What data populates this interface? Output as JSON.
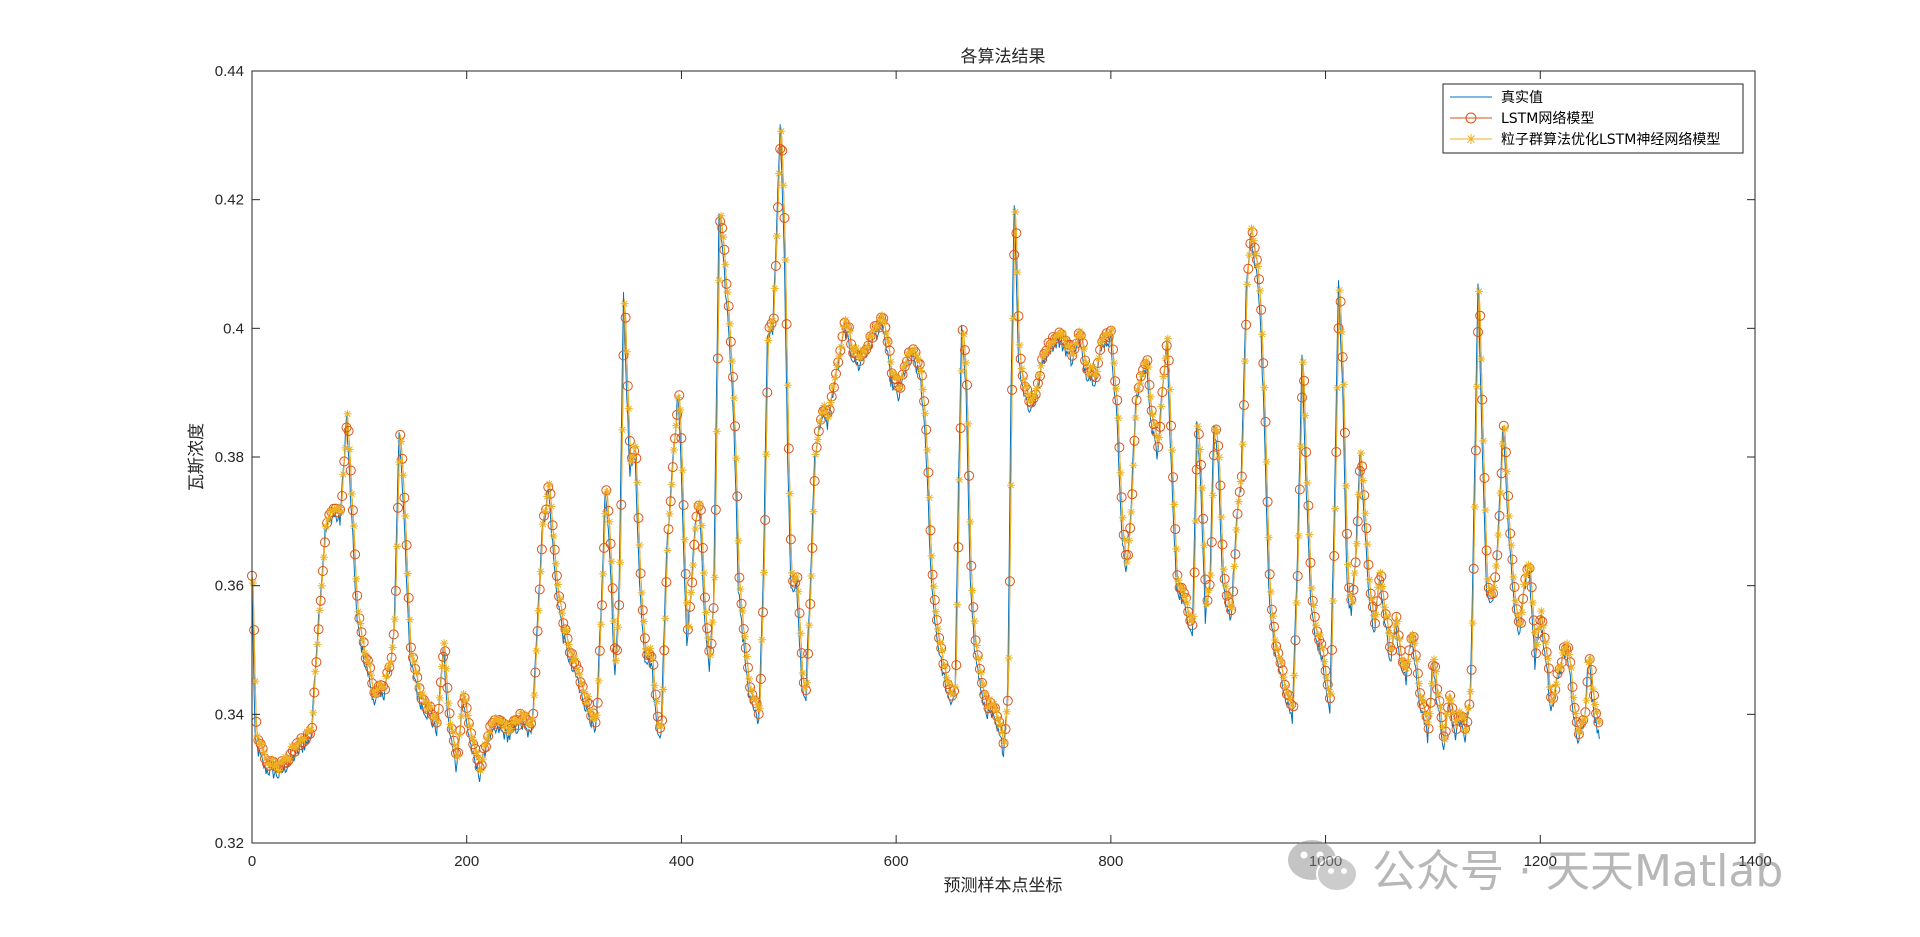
{
  "chart_data": {
    "type": "line",
    "title": "各算法结果",
    "xlabel": "预测样本点坐标",
    "ylabel": "瓦斯浓度",
    "xlim": [
      0,
      1400
    ],
    "ylim": [
      0.32,
      0.44
    ],
    "xticks": [
      0,
      200,
      400,
      600,
      800,
      1000,
      1200,
      1400
    ],
    "yticks": [
      0.32,
      0.34,
      0.36,
      0.38,
      0.4,
      0.42,
      0.44
    ],
    "xtick_labels": [
      "0",
      "200",
      "400",
      "600",
      "800",
      "1000",
      "1200",
      "1400"
    ],
    "ytick_labels": [
      "0.32",
      "0.34",
      "0.36",
      "0.38",
      "0.4",
      "0.42",
      "0.44"
    ],
    "grid": false,
    "legend_position": "top-right",
    "series": [
      {
        "name": "真实值",
        "color": "#0072BD",
        "marker": "none"
      },
      {
        "name": "LSTM网络模型",
        "color": "#D95319",
        "marker": "circle"
      },
      {
        "name": "粒子群算法优化LSTM神经网络模型",
        "color": "#EDB120",
        "marker": "asterisk"
      }
    ],
    "keypoints": [
      [
        0,
        0.36
      ],
      [
        3,
        0.337
      ],
      [
        12,
        0.333
      ],
      [
        25,
        0.332
      ],
      [
        40,
        0.335
      ],
      [
        55,
        0.338
      ],
      [
        62,
        0.355
      ],
      [
        68,
        0.368
      ],
      [
        75,
        0.371
      ],
      [
        82,
        0.37
      ],
      [
        88,
        0.386
      ],
      [
        93,
        0.37
      ],
      [
        98,
        0.354
      ],
      [
        105,
        0.348
      ],
      [
        112,
        0.344
      ],
      [
        120,
        0.344
      ],
      [
        128,
        0.346
      ],
      [
        132,
        0.352
      ],
      [
        137,
        0.384
      ],
      [
        142,
        0.37
      ],
      [
        147,
        0.348
      ],
      [
        155,
        0.344
      ],
      [
        165,
        0.341
      ],
      [
        172,
        0.339
      ],
      [
        178,
        0.35
      ],
      [
        183,
        0.34
      ],
      [
        190,
        0.333
      ],
      [
        196,
        0.344
      ],
      [
        200,
        0.34
      ],
      [
        207,
        0.334
      ],
      [
        212,
        0.332
      ],
      [
        220,
        0.338
      ],
      [
        230,
        0.339
      ],
      [
        240,
        0.338
      ],
      [
        250,
        0.34
      ],
      [
        260,
        0.338
      ],
      [
        265,
        0.352
      ],
      [
        270,
        0.368
      ],
      [
        276,
        0.375
      ],
      [
        283,
        0.36
      ],
      [
        290,
        0.352
      ],
      [
        298,
        0.347
      ],
      [
        308,
        0.344
      ],
      [
        315,
        0.341
      ],
      [
        320,
        0.338
      ],
      [
        325,
        0.355
      ],
      [
        329,
        0.375
      ],
      [
        334,
        0.363
      ],
      [
        338,
        0.345
      ],
      [
        342,
        0.36
      ],
      [
        346,
        0.405
      ],
      [
        349,
        0.39
      ],
      [
        352,
        0.378
      ],
      [
        357,
        0.38
      ],
      [
        361,
        0.36
      ],
      [
        366,
        0.349
      ],
      [
        372,
        0.348
      ],
      [
        377,
        0.34
      ],
      [
        381,
        0.338
      ],
      [
        386,
        0.365
      ],
      [
        392,
        0.38
      ],
      [
        397,
        0.39
      ],
      [
        401,
        0.372
      ],
      [
        405,
        0.35
      ],
      [
        409,
        0.36
      ],
      [
        413,
        0.37
      ],
      [
        417,
        0.372
      ],
      [
        421,
        0.356
      ],
      [
        426,
        0.347
      ],
      [
        430,
        0.358
      ],
      [
        435,
        0.418
      ],
      [
        439,
        0.41
      ],
      [
        444,
        0.4
      ],
      [
        449,
        0.385
      ],
      [
        453,
        0.36
      ],
      [
        457,
        0.352
      ],
      [
        462,
        0.345
      ],
      [
        467,
        0.342
      ],
      [
        472,
        0.34
      ],
      [
        476,
        0.36
      ],
      [
        480,
        0.398
      ],
      [
        485,
        0.4
      ],
      [
        489,
        0.418
      ],
      [
        492,
        0.432
      ],
      [
        496,
        0.41
      ],
      [
        499,
        0.38
      ],
      [
        502,
        0.36
      ],
      [
        507,
        0.36
      ],
      [
        512,
        0.345
      ],
      [
        516,
        0.344
      ],
      [
        520,
        0.36
      ],
      [
        524,
        0.38
      ],
      [
        530,
        0.386
      ],
      [
        536,
        0.385
      ],
      [
        541,
        0.39
      ],
      [
        547,
        0.395
      ],
      [
        552,
        0.4
      ],
      [
        558,
        0.396
      ],
      [
        565,
        0.394
      ],
      [
        572,
        0.396
      ],
      [
        580,
        0.399
      ],
      [
        588,
        0.4
      ],
      [
        595,
        0.392
      ],
      [
        602,
        0.389
      ],
      [
        609,
        0.394
      ],
      [
        616,
        0.395
      ],
      [
        623,
        0.392
      ],
      [
        628,
        0.38
      ],
      [
        633,
        0.36
      ],
      [
        638,
        0.352
      ],
      [
        644,
        0.346
      ],
      [
        650,
        0.343
      ],
      [
        655,
        0.345
      ],
      [
        658,
        0.375
      ],
      [
        661,
        0.4
      ],
      [
        665,
        0.39
      ],
      [
        669,
        0.362
      ],
      [
        673,
        0.35
      ],
      [
        678,
        0.345
      ],
      [
        684,
        0.342
      ],
      [
        690,
        0.341
      ],
      [
        696,
        0.338
      ],
      [
        700,
        0.336
      ],
      [
        704,
        0.345
      ],
      [
        707,
        0.39
      ],
      [
        710,
        0.42
      ],
      [
        714,
        0.395
      ],
      [
        719,
        0.39
      ],
      [
        725,
        0.387
      ],
      [
        731,
        0.39
      ],
      [
        737,
        0.395
      ],
      [
        743,
        0.397
      ],
      [
        750,
        0.398
      ],
      [
        757,
        0.397
      ],
      [
        763,
        0.395
      ],
      [
        770,
        0.398
      ],
      [
        777,
        0.393
      ],
      [
        785,
        0.392
      ],
      [
        793,
        0.398
      ],
      [
        800,
        0.398
      ],
      [
        806,
        0.385
      ],
      [
        810,
        0.368
      ],
      [
        814,
        0.362
      ],
      [
        818,
        0.37
      ],
      [
        823,
        0.388
      ],
      [
        828,
        0.392
      ],
      [
        833,
        0.394
      ],
      [
        838,
        0.385
      ],
      [
        843,
        0.38
      ],
      [
        848,
        0.39
      ],
      [
        852,
        0.398
      ],
      [
        857,
        0.375
      ],
      [
        861,
        0.36
      ],
      [
        866,
        0.358
      ],
      [
        871,
        0.355
      ],
      [
        876,
        0.353
      ],
      [
        880,
        0.385
      ],
      [
        884,
        0.375
      ],
      [
        888,
        0.355
      ],
      [
        892,
        0.36
      ],
      [
        896,
        0.385
      ],
      [
        900,
        0.378
      ],
      [
        904,
        0.36
      ],
      [
        908,
        0.357
      ],
      [
        912,
        0.355
      ],
      [
        917,
        0.37
      ],
      [
        921,
        0.375
      ],
      [
        926,
        0.405
      ],
      [
        930,
        0.415
      ],
      [
        934,
        0.41
      ],
      [
        938,
        0.405
      ],
      [
        942,
        0.39
      ],
      [
        947,
        0.36
      ],
      [
        952,
        0.35
      ],
      [
        958,
        0.346
      ],
      [
        964,
        0.343
      ],
      [
        969,
        0.341
      ],
      [
        973,
        0.36
      ],
      [
        978,
        0.395
      ],
      [
        982,
        0.375
      ],
      [
        986,
        0.358
      ],
      [
        990,
        0.352
      ],
      [
        995,
        0.35
      ],
      [
        1000,
        0.345
      ],
      [
        1004,
        0.342
      ],
      [
        1008,
        0.37
      ],
      [
        1012,
        0.408
      ],
      [
        1016,
        0.39
      ],
      [
        1020,
        0.36
      ],
      [
        1024,
        0.355
      ],
      [
        1028,
        0.365
      ],
      [
        1032,
        0.38
      ],
      [
        1036,
        0.37
      ],
      [
        1040,
        0.36
      ],
      [
        1045,
        0.352
      ],
      [
        1050,
        0.362
      ],
      [
        1055,
        0.355
      ],
      [
        1060,
        0.348
      ],
      [
        1065,
        0.354
      ],
      [
        1070,
        0.348
      ],
      [
        1075,
        0.345
      ],
      [
        1080,
        0.352
      ],
      [
        1085,
        0.345
      ],
      [
        1090,
        0.342
      ],
      [
        1095,
        0.338
      ],
      [
        1100,
        0.348
      ],
      [
        1105,
        0.342
      ],
      [
        1110,
        0.336
      ],
      [
        1115,
        0.344
      ],
      [
        1120,
        0.338
      ],
      [
        1125,
        0.34
      ],
      [
        1130,
        0.338
      ],
      [
        1135,
        0.345
      ],
      [
        1138,
        0.37
      ],
      [
        1142,
        0.408
      ],
      [
        1146,
        0.38
      ],
      [
        1150,
        0.36
      ],
      [
        1155,
        0.357
      ],
      [
        1160,
        0.365
      ],
      [
        1165,
        0.385
      ],
      [
        1170,
        0.37
      ],
      [
        1175,
        0.358
      ],
      [
        1180,
        0.352
      ],
      [
        1185,
        0.36
      ],
      [
        1190,
        0.362
      ],
      [
        1195,
        0.348
      ],
      [
        1200,
        0.355
      ],
      [
        1205,
        0.348
      ],
      [
        1210,
        0.342
      ],
      [
        1215,
        0.345
      ],
      [
        1220,
        0.348
      ],
      [
        1225,
        0.35
      ],
      [
        1230,
        0.342
      ],
      [
        1235,
        0.338
      ],
      [
        1240,
        0.34
      ],
      [
        1245,
        0.348
      ],
      [
        1250,
        0.342
      ],
      [
        1255,
        0.338
      ]
    ]
  },
  "watermark": {
    "text": "公众号 · 天天Matlab",
    "icon": "wechat-icon"
  }
}
